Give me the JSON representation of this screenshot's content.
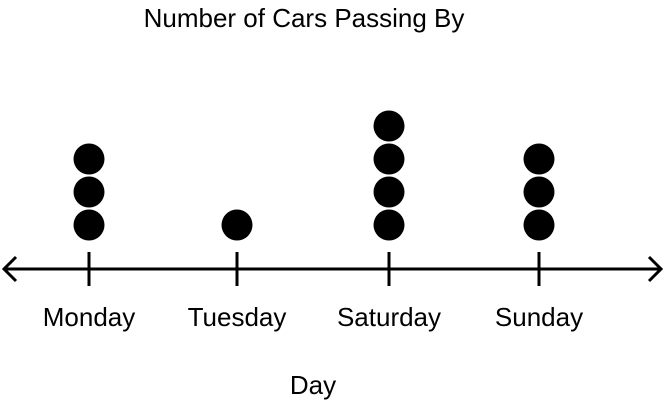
{
  "chart_data": {
    "type": "dot-plot",
    "title": "Number of Cars Passing By",
    "xlabel": "Day",
    "ylabel": "",
    "categories": [
      "Monday",
      "Tuesday",
      "Saturday",
      "Sunday"
    ],
    "values": [
      3,
      1,
      4,
      3
    ],
    "grid": false,
    "legend": "none",
    "axis_arrows": true
  },
  "colors": {
    "dot": "#000000",
    "axis": "#000000",
    "background": "#ffffff"
  }
}
